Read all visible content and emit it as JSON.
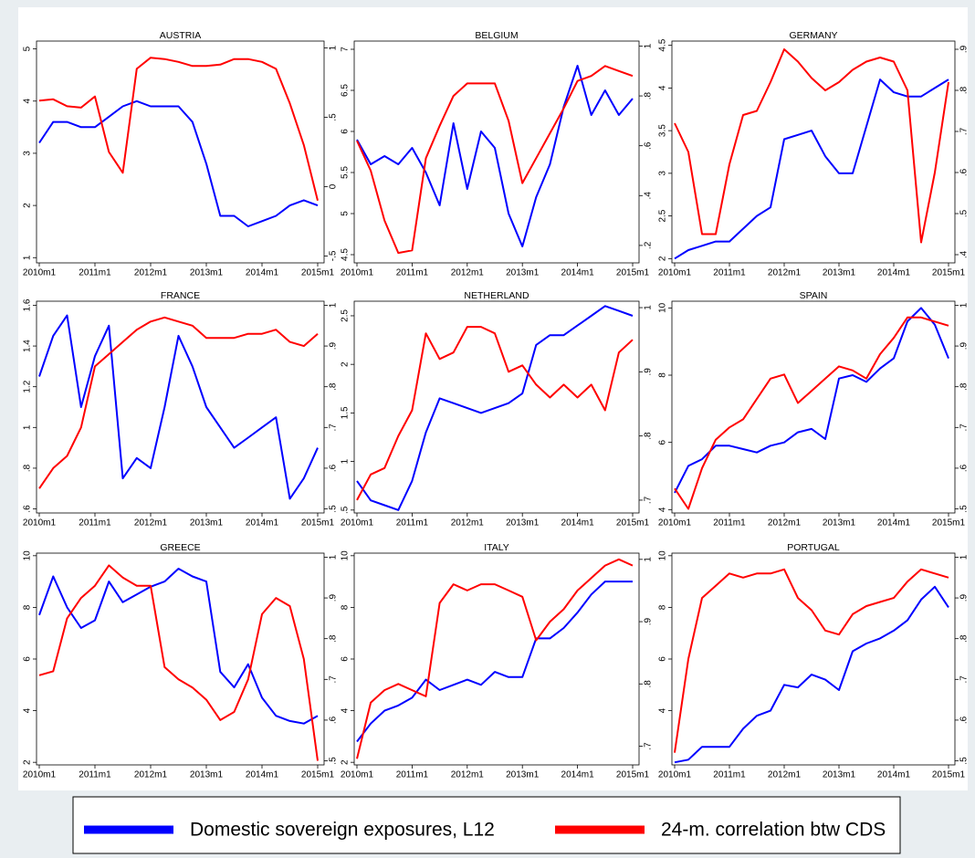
{
  "chart_data": [
    {
      "type": "line",
      "title": "AUSTRIA",
      "x": [
        "2010m1",
        "2010m4",
        "2010m7",
        "2010m10",
        "2011m1",
        "2011m4",
        "2011m7",
        "2011m10",
        "2012m1",
        "2012m4",
        "2012m7",
        "2012m10",
        "2013m1",
        "2013m4",
        "2013m7",
        "2013m10",
        "2014m1",
        "2014m4",
        "2014m7",
        "2014m10",
        "2015m1"
      ],
      "xticks": [
        "2010m1",
        "2011m1",
        "2012m1",
        "2013m1",
        "2014m1",
        "2015m1"
      ],
      "ylim": [
        0.9,
        5.15
      ],
      "yticks": [
        1,
        2,
        3,
        4,
        5
      ],
      "y2lim": [
        -0.55,
        1.05
      ],
      "y2ticks": [
        {
          "value": -0.5,
          "label": "-.5"
        },
        0,
        {
          "value": 0.5,
          "label": ".5"
        },
        1
      ],
      "series": [
        {
          "name": "Domestic sovereign exposures, L12",
          "color": "#0000ff",
          "values": [
            3.2,
            3.6,
            3.6,
            3.5,
            3.5,
            3.7,
            3.9,
            4.0,
            3.9,
            3.9,
            3.9,
            3.6,
            2.8,
            1.8,
            1.8,
            1.6,
            1.7,
            1.8,
            2.0,
            2.1,
            2.0
          ]
        },
        {
          "name": "24-m. correlation btw CDS",
          "color": "#ff0000",
          "axis": "y2",
          "values": [
            0.62,
            0.63,
            0.58,
            0.57,
            0.65,
            0.25,
            0.1,
            0.85,
            0.93,
            0.92,
            0.9,
            0.87,
            0.87,
            0.88,
            0.92,
            0.92,
            0.9,
            0.85,
            0.6,
            0.3,
            -0.1
          ]
        }
      ]
    },
    {
      "type": "line",
      "title": "BELGIUM",
      "x": [
        "2010m1",
        "2010m4",
        "2010m7",
        "2010m10",
        "2011m1",
        "2011m4",
        "2011m7",
        "2011m10",
        "2012m1",
        "2012m4",
        "2012m7",
        "2012m10",
        "2013m1",
        "2013m4",
        "2013m7",
        "2013m10",
        "2014m1",
        "2014m4",
        "2014m7",
        "2014m10",
        "2015m1"
      ],
      "xticks": [
        "2010m1",
        "2011m1",
        "2012m1",
        "2013m1",
        "2014m1",
        "2015m1"
      ],
      "ylim": [
        4.4,
        7.1
      ],
      "yticks": [
        4.5,
        5,
        5.5,
        6,
        6.5,
        7
      ],
      "y2lim": [
        0.13,
        1.02
      ],
      "y2ticks": [
        {
          "value": 0.2,
          "label": ".2"
        },
        {
          "value": 0.4,
          "label": ".4"
        },
        {
          "value": 0.6,
          "label": ".6"
        },
        {
          "value": 0.8,
          "label": ".8"
        },
        1
      ],
      "series": [
        {
          "color": "#0000ff",
          "values": [
            5.9,
            5.6,
            5.7,
            5.6,
            5.8,
            5.5,
            5.1,
            6.1,
            5.3,
            6.0,
            5.8,
            5.0,
            4.6,
            5.2,
            5.6,
            6.3,
            6.8,
            6.2,
            6.5,
            6.2,
            6.4
          ]
        },
        {
          "color": "#ff0000",
          "axis": "y2",
          "values": [
            0.62,
            0.5,
            0.3,
            0.17,
            0.18,
            0.55,
            0.68,
            0.8,
            0.85,
            0.85,
            0.85,
            0.7,
            0.45,
            0.55,
            0.65,
            0.75,
            0.86,
            0.88,
            0.92,
            0.9,
            0.88
          ]
        }
      ]
    },
    {
      "type": "line",
      "title": "GERMANY",
      "x": [
        "2010m1",
        "2010m4",
        "2010m7",
        "2010m10",
        "2011m1",
        "2011m4",
        "2011m7",
        "2011m10",
        "2012m1",
        "2012m4",
        "2012m7",
        "2012m10",
        "2013m1",
        "2013m4",
        "2013m7",
        "2013m10",
        "2014m1",
        "2014m4",
        "2014m7",
        "2014m10",
        "2015m1"
      ],
      "xticks": [
        "2010m1",
        "2011m1",
        "2012m1",
        "2013m1",
        "2014m1",
        "2015m1"
      ],
      "ylim": [
        1.95,
        4.55
      ],
      "yticks": [
        2,
        2.5,
        3,
        3.5,
        4,
        4.5
      ],
      "y2lim": [
        0.38,
        0.92
      ],
      "y2ticks": [
        {
          "value": 0.4,
          "label": ".4"
        },
        {
          "value": 0.5,
          "label": ".5"
        },
        {
          "value": 0.6,
          "label": ".6"
        },
        {
          "value": 0.7,
          "label": ".7"
        },
        {
          "value": 0.8,
          "label": ".8"
        },
        {
          "value": 0.9,
          "label": ".9"
        }
      ],
      "series": [
        {
          "color": "#0000ff",
          "values": [
            2.0,
            2.1,
            2.15,
            2.2,
            2.2,
            2.35,
            2.5,
            2.6,
            3.4,
            3.45,
            3.5,
            3.2,
            3.0,
            3.0,
            3.55,
            4.1,
            3.95,
            3.9,
            3.9,
            4.0,
            4.1
          ]
        },
        {
          "color": "#ff0000",
          "axis": "y2",
          "values": [
            0.72,
            0.65,
            0.45,
            0.45,
            0.62,
            0.74,
            0.75,
            0.82,
            0.9,
            0.87,
            0.83,
            0.8,
            0.82,
            0.85,
            0.87,
            0.88,
            0.87,
            0.8,
            0.43,
            0.6,
            0.82
          ]
        }
      ]
    },
    {
      "type": "line",
      "title": "FRANCE",
      "x": [
        "2010m1",
        "2010m4",
        "2010m7",
        "2010m10",
        "2011m1",
        "2011m4",
        "2011m7",
        "2011m10",
        "2012m1",
        "2012m4",
        "2012m7",
        "2012m10",
        "2013m1",
        "2013m4",
        "2013m7",
        "2013m10",
        "2014m1",
        "2014m4",
        "2014m7",
        "2014m10",
        "2015m1"
      ],
      "xticks": [
        "2010m1",
        "2011m1",
        "2012m1",
        "2013m1",
        "2014m1",
        "2015m1"
      ],
      "ylim": [
        0.58,
        1.62
      ],
      "yticks": [
        {
          "value": 0.6,
          "label": ".6"
        },
        {
          "value": 0.8,
          "label": ".8"
        },
        1,
        1.2,
        1.4,
        1.6
      ],
      "y2lim": [
        0.49,
        1.01
      ],
      "y2ticks": [
        {
          "value": 0.5,
          "label": ".5"
        },
        {
          "value": 0.6,
          "label": ".6"
        },
        {
          "value": 0.7,
          "label": ".7"
        },
        {
          "value": 0.8,
          "label": ".8"
        },
        {
          "value": 0.9,
          "label": ".9"
        },
        1
      ],
      "series": [
        {
          "color": "#0000ff",
          "values": [
            1.25,
            1.45,
            1.55,
            1.1,
            1.35,
            1.5,
            0.75,
            0.85,
            0.8,
            1.1,
            1.45,
            1.3,
            1.1,
            1.0,
            0.9,
            0.95,
            1.0,
            1.05,
            0.65,
            0.75,
            0.9
          ]
        },
        {
          "color": "#ff0000",
          "axis": "y2",
          "values": [
            0.55,
            0.6,
            0.63,
            0.7,
            0.85,
            0.88,
            0.91,
            0.94,
            0.96,
            0.97,
            0.96,
            0.95,
            0.92,
            0.92,
            0.92,
            0.93,
            0.93,
            0.94,
            0.91,
            0.9,
            0.93
          ]
        }
      ]
    },
    {
      "type": "line",
      "title": "NETHERLAND",
      "x": [
        "2010m1",
        "2010m4",
        "2010m7",
        "2010m10",
        "2011m1",
        "2011m4",
        "2011m7",
        "2011m10",
        "2012m1",
        "2012m4",
        "2012m7",
        "2012m10",
        "2013m1",
        "2013m4",
        "2013m7",
        "2013m10",
        "2014m1",
        "2014m4",
        "2014m7",
        "2014m10",
        "2015m1"
      ],
      "xticks": [
        "2010m1",
        "2011m1",
        "2012m1",
        "2013m1",
        "2014m1",
        "2015m1"
      ],
      "ylim": [
        0.47,
        2.65
      ],
      "yticks": [
        {
          "value": 0.5,
          "label": ".5"
        },
        1,
        1.5,
        2,
        2.5
      ],
      "y2lim": [
        0.68,
        1.01
      ],
      "y2ticks": [
        {
          "value": 0.7,
          "label": ".7"
        },
        {
          "value": 0.8,
          "label": ".8"
        },
        {
          "value": 0.9,
          "label": ".9"
        },
        1
      ],
      "series": [
        {
          "color": "#0000ff",
          "values": [
            0.8,
            0.6,
            0.55,
            0.5,
            0.8,
            1.3,
            1.65,
            1.6,
            1.55,
            1.5,
            1.55,
            1.6,
            1.7,
            2.2,
            2.3,
            2.3,
            2.4,
            2.5,
            2.6,
            2.55,
            2.5
          ]
        },
        {
          "color": "#ff0000",
          "axis": "y2",
          "values": [
            0.7,
            0.74,
            0.75,
            0.8,
            0.84,
            0.96,
            0.92,
            0.93,
            0.97,
            0.97,
            0.96,
            0.9,
            0.91,
            0.88,
            0.86,
            0.88,
            0.86,
            0.88,
            0.84,
            0.93,
            0.95
          ]
        }
      ]
    },
    {
      "type": "line",
      "title": "SPAIN",
      "x": [
        "2010m1",
        "2010m4",
        "2010m7",
        "2010m10",
        "2011m1",
        "2011m4",
        "2011m7",
        "2011m10",
        "2012m1",
        "2012m4",
        "2012m7",
        "2012m10",
        "2013m1",
        "2013m4",
        "2013m7",
        "2013m10",
        "2014m1",
        "2014m4",
        "2014m7",
        "2014m10",
        "2015m1"
      ],
      "xticks": [
        "2010m1",
        "2011m1",
        "2012m1",
        "2013m1",
        "2014m1",
        "2015m1"
      ],
      "ylim": [
        3.9,
        10.2
      ],
      "yticks": [
        4,
        6,
        8,
        10
      ],
      "y2lim": [
        0.49,
        1.01
      ],
      "y2ticks": [
        {
          "value": 0.5,
          "label": ".5"
        },
        {
          "value": 0.6,
          "label": ".6"
        },
        {
          "value": 0.7,
          "label": ".7"
        },
        {
          "value": 0.8,
          "label": ".8"
        },
        {
          "value": 0.9,
          "label": ".9"
        },
        1
      ],
      "series": [
        {
          "color": "#0000ff",
          "values": [
            4.5,
            5.3,
            5.5,
            5.9,
            5.9,
            5.8,
            5.7,
            5.9,
            6.0,
            6.3,
            6.4,
            6.1,
            7.9,
            8.0,
            7.8,
            8.2,
            8.5,
            9.6,
            10.0,
            9.5,
            8.5
          ]
        },
        {
          "color": "#ff0000",
          "axis": "y2",
          "values": [
            0.55,
            0.5,
            0.6,
            0.67,
            0.7,
            0.72,
            0.77,
            0.82,
            0.83,
            0.76,
            0.79,
            0.82,
            0.85,
            0.84,
            0.82,
            0.88,
            0.92,
            0.97,
            0.97,
            0.96,
            0.95
          ]
        }
      ]
    },
    {
      "type": "line",
      "title": "GREECE",
      "x": [
        "2010m1",
        "2010m4",
        "2010m7",
        "2010m10",
        "2011m1",
        "2011m4",
        "2011m7",
        "2011m10",
        "2012m1",
        "2012m4",
        "2012m7",
        "2012m10",
        "2013m1",
        "2013m4",
        "2013m7",
        "2013m10",
        "2014m1",
        "2014m4",
        "2014m7",
        "2014m10",
        "2015m1"
      ],
      "xticks": [
        "2010m1",
        "2011m1",
        "2012m1",
        "2013m1",
        "2014m1",
        "2015m1"
      ],
      "ylim": [
        1.9,
        10.1
      ],
      "yticks": [
        2,
        4,
        6,
        8,
        10
      ],
      "y2lim": [
        0.49,
        1.01
      ],
      "y2ticks": [
        {
          "value": 0.5,
          "label": ".5"
        },
        {
          "value": 0.6,
          "label": ".6"
        },
        {
          "value": 0.7,
          "label": ".7"
        },
        {
          "value": 0.8,
          "label": ".8"
        },
        {
          "value": 0.9,
          "label": ".9"
        },
        1
      ],
      "series": [
        {
          "color": "#0000ff",
          "values": [
            7.7,
            9.2,
            8.0,
            7.2,
            7.5,
            9.0,
            8.2,
            8.5,
            8.8,
            9.0,
            9.5,
            9.2,
            9.0,
            5.5,
            4.9,
            5.8,
            4.5,
            3.8,
            3.6,
            3.5,
            3.8
          ]
        },
        {
          "color": "#ff0000",
          "axis": "y2",
          "values": [
            0.71,
            0.72,
            0.85,
            0.9,
            0.93,
            0.98,
            0.95,
            0.93,
            0.93,
            0.73,
            0.7,
            0.68,
            0.65,
            0.6,
            0.62,
            0.7,
            0.86,
            0.9,
            0.88,
            0.75,
            0.5
          ]
        }
      ]
    },
    {
      "type": "line",
      "title": "ITALY",
      "x": [
        "2010m1",
        "2010m4",
        "2010m7",
        "2010m10",
        "2011m1",
        "2011m4",
        "2011m7",
        "2011m10",
        "2012m1",
        "2012m4",
        "2012m7",
        "2012m10",
        "2013m1",
        "2013m4",
        "2013m7",
        "2013m10",
        "2014m1",
        "2014m4",
        "2014m7",
        "2014m10",
        "2015m1"
      ],
      "xticks": [
        "2010m1",
        "2011m1",
        "2012m1",
        "2013m1",
        "2014m1",
        "2015m1"
      ],
      "ylim": [
        1.9,
        10.1
      ],
      "yticks": [
        2,
        4,
        6,
        8,
        10
      ],
      "y2lim": [
        0.67,
        1.01
      ],
      "y2ticks": [
        {
          "value": 0.7,
          "label": ".7"
        },
        {
          "value": 0.8,
          "label": ".8"
        },
        {
          "value": 0.9,
          "label": ".9"
        },
        1
      ],
      "series": [
        {
          "color": "#0000ff",
          "values": [
            2.8,
            3.5,
            4.0,
            4.2,
            4.5,
            5.2,
            4.8,
            5.0,
            5.2,
            5.0,
            5.5,
            5.3,
            5.3,
            6.8,
            6.8,
            7.2,
            7.8,
            8.5,
            9.0,
            9.0,
            9.0
          ]
        },
        {
          "color": "#ff0000",
          "axis": "y2",
          "values": [
            0.68,
            0.77,
            0.79,
            0.8,
            0.79,
            0.78,
            0.93,
            0.96,
            0.95,
            0.96,
            0.96,
            0.95,
            0.94,
            0.87,
            0.9,
            0.92,
            0.95,
            0.97,
            0.99,
            1.0,
            0.99
          ]
        }
      ]
    },
    {
      "type": "line",
      "title": "PORTUGAL",
      "x": [
        "2010m1",
        "2010m4",
        "2010m7",
        "2010m10",
        "2011m1",
        "2011m4",
        "2011m7",
        "2011m10",
        "2012m1",
        "2012m4",
        "2012m7",
        "2012m10",
        "2013m1",
        "2013m4",
        "2013m7",
        "2013m10",
        "2014m1",
        "2014m4",
        "2014m7",
        "2014m10",
        "2015m1"
      ],
      "xticks": [
        "2010m1",
        "2011m1",
        "2012m1",
        "2013m1",
        "2014m1",
        "2015m1"
      ],
      "ylim": [
        1.9,
        10.1
      ],
      "yticks": [
        4,
        6,
        8,
        10
      ],
      "y2lim": [
        0.49,
        1.01
      ],
      "y2ticks": [
        {
          "value": 0.5,
          "label": ".5"
        },
        {
          "value": 0.6,
          "label": ".6"
        },
        {
          "value": 0.7,
          "label": ".7"
        },
        {
          "value": 0.8,
          "label": ".8"
        },
        {
          "value": 0.9,
          "label": ".9"
        },
        1
      ],
      "series": [
        {
          "color": "#0000ff",
          "values": [
            2.0,
            2.1,
            2.6,
            2.6,
            2.6,
            3.3,
            3.8,
            4.0,
            5.0,
            4.9,
            5.4,
            5.2,
            4.8,
            6.3,
            6.6,
            6.8,
            7.1,
            7.5,
            8.3,
            8.8,
            8.0
          ]
        },
        {
          "color": "#ff0000",
          "axis": "y2",
          "values": [
            0.52,
            0.75,
            0.9,
            0.93,
            0.96,
            0.95,
            0.96,
            0.96,
            0.97,
            0.9,
            0.87,
            0.82,
            0.81,
            0.86,
            0.88,
            0.89,
            0.9,
            0.94,
            0.97,
            0.96,
            0.95
          ]
        }
      ]
    }
  ]
}
